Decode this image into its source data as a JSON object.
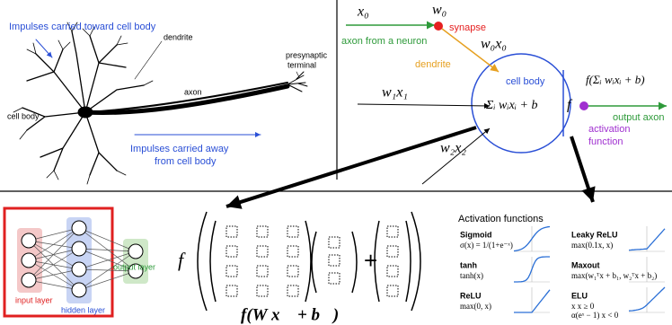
{
  "biological_neuron": {
    "toward_label": "Impulses carried toward cell body",
    "dendrite": "dendrite",
    "terminal": [
      "presynaptic",
      "terminal"
    ],
    "axon": "axon",
    "cell_body": "cell body",
    "away_label": [
      "Impulses carried away",
      "from cell body"
    ]
  },
  "math_neuron": {
    "x0": "x₀",
    "w0": "w₀",
    "synapse": "synapse",
    "axon_from": "axon from a neuron",
    "w0x0": "w₀x₀",
    "dendrite": "dendrite",
    "cell_body": "cell body",
    "w1x1": "w₁x₁",
    "sum": "Σᵢ wᵢxᵢ + b",
    "f": "f",
    "output_formula": "f(Σᵢ wᵢxᵢ + b)",
    "output_axon": "output axon",
    "activation": [
      "activation",
      "function"
    ],
    "w2x2": "w₂x₂"
  },
  "network": {
    "input": "input layer",
    "hidden": "hidden layer",
    "output": "output layer"
  },
  "formula": {
    "f": "f",
    "plus": "+",
    "compact": "f(W x⃗  + b⃗)"
  },
  "activations": {
    "title": "Activation functions",
    "items": [
      {
        "name": "Sigmoid",
        "formula": [
          "σ(x) = 1/(1+e⁻ˣ)"
        ]
      },
      {
        "name": "tanh",
        "formula": [
          "tanh(x)"
        ]
      },
      {
        "name": "ReLU",
        "formula": [
          "max(0, x)"
        ]
      },
      {
        "name": "Leaky ReLU",
        "formula": [
          "max(0.1x, x)"
        ]
      },
      {
        "name": "Maxout",
        "formula": [
          "max(w₁ᵀx + b₁, w₂ᵀx + b₂)"
        ]
      },
      {
        "name": "ELU",
        "formula": [
          "x            x ≥ 0",
          "α(eˣ − 1)   x < 0"
        ]
      }
    ]
  }
}
